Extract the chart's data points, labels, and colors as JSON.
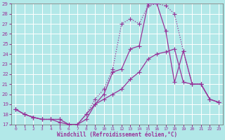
{
  "xlabel": "Windchill (Refroidissement éolien,°C)",
  "bg_color": "#b2e8e8",
  "line_color": "#993399",
  "grid_color": "#ffffff",
  "ylim": [
    17,
    29
  ],
  "xlim": [
    -0.5,
    23.5
  ],
  "yticks": [
    17,
    18,
    19,
    20,
    21,
    22,
    23,
    24,
    25,
    26,
    27,
    28,
    29
  ],
  "xticks": [
    0,
    1,
    2,
    3,
    4,
    5,
    6,
    7,
    8,
    9,
    10,
    11,
    12,
    13,
    14,
    15,
    16,
    17,
    18,
    19,
    20,
    21,
    22,
    23
  ],
  "line1_x": [
    0,
    1,
    2,
    3,
    4,
    5,
    6,
    7,
    8,
    9,
    10,
    11,
    12,
    13,
    14,
    15,
    16,
    17,
    18,
    19,
    20,
    21,
    22,
    23
  ],
  "line1_y": [
    18.5,
    18.0,
    17.7,
    17.5,
    17.5,
    17.5,
    17.0,
    17.0,
    17.5,
    19.0,
    20.0,
    22.2,
    22.5,
    24.5,
    24.8,
    29.0,
    29.0,
    26.3,
    21.2,
    24.3,
    21.0,
    21.0,
    19.5,
    19.2
  ],
  "line2_x": [
    0,
    1,
    2,
    3,
    4,
    5,
    6,
    7,
    8,
    9,
    10,
    11,
    12,
    13,
    14,
    15,
    16,
    17,
    18,
    19,
    20,
    21,
    22,
    23
  ],
  "line2_y": [
    18.5,
    18.0,
    17.7,
    17.5,
    17.5,
    17.5,
    17.0,
    17.0,
    18.0,
    19.5,
    20.5,
    22.5,
    27.0,
    27.5,
    27.0,
    28.8,
    29.0,
    28.8,
    28.0,
    24.3,
    21.0,
    21.0,
    19.5,
    19.2
  ],
  "line3_x": [
    0,
    1,
    2,
    3,
    4,
    5,
    6,
    7,
    8,
    9,
    10,
    11,
    12,
    13,
    14,
    15,
    16,
    17,
    18,
    19,
    20,
    21,
    22,
    23
  ],
  "line3_y": [
    18.5,
    18.0,
    17.7,
    17.5,
    17.5,
    17.2,
    17.0,
    17.0,
    18.0,
    19.0,
    19.5,
    20.0,
    20.5,
    21.5,
    22.2,
    23.5,
    24.0,
    24.2,
    24.5,
    21.2,
    21.0,
    21.0,
    19.5,
    19.2
  ],
  "marker_style": "+",
  "lw": 0.9,
  "ms": 4.0
}
